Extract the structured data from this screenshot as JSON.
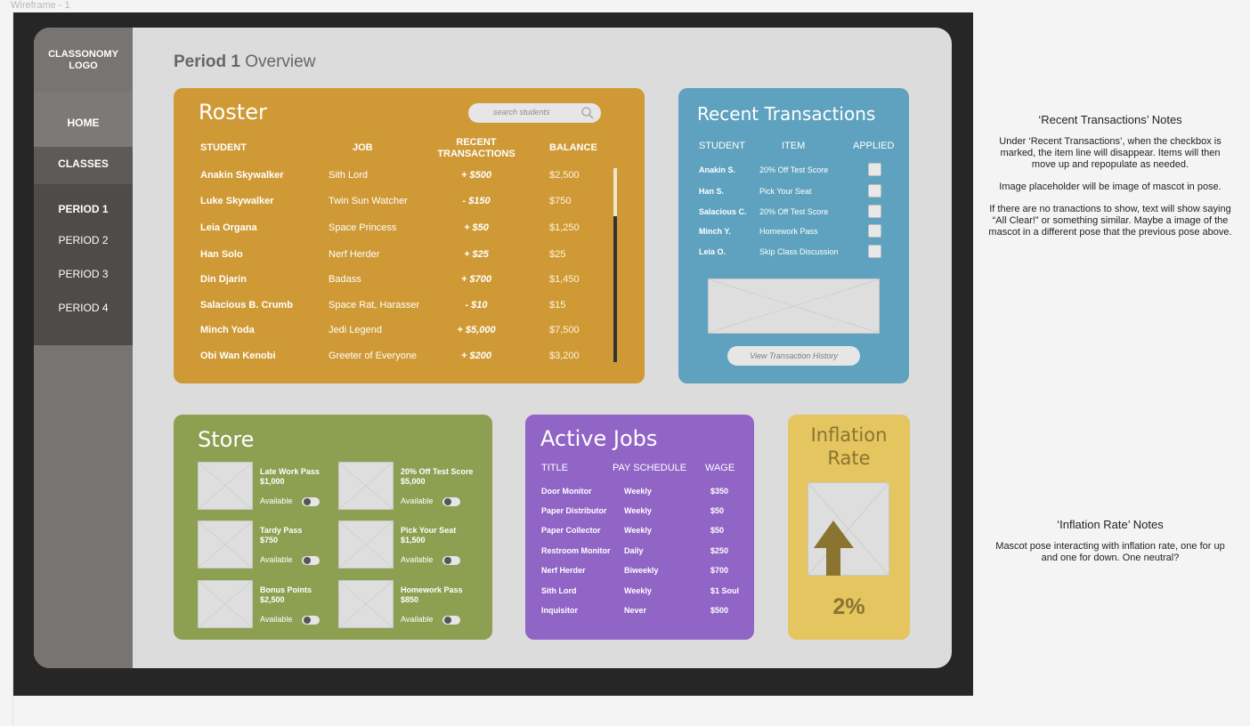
{
  "frame_label": "Wireframe - 1",
  "sidebar": {
    "logo": "CLASSONOMY LOGO",
    "home": "HOME",
    "classes": "CLASSES",
    "periods": [
      "PERIOD 1",
      "PERIOD 2",
      "PERIOD 3",
      "PERIOD 4"
    ],
    "active_period": "PERIOD 1"
  },
  "page_title": {
    "bold": "Period 1",
    "rest": " Overview"
  },
  "roster": {
    "title": "Roster",
    "search_placeholder": "search students",
    "headers": [
      "STUDENT",
      "JOB",
      "RECENT TRANSACTIONS",
      "BALANCE"
    ],
    "rows": [
      {
        "student": "Anakin Skywalker",
        "job": "Sith Lord",
        "tx": "+ $500",
        "balance": "$2,500"
      },
      {
        "student": "Luke Skywalker",
        "job": "Twin Sun Watcher",
        "tx": "- $150",
        "balance": "$750"
      },
      {
        "student": "Leia Organa",
        "job": "Space Princess",
        "tx": "+ $50",
        "balance": "$1,250"
      },
      {
        "student": "Han Solo",
        "job": "Nerf Herder",
        "tx": "+ $25",
        "balance": "$25"
      },
      {
        "student": "Din Djarin",
        "job": "Badass",
        "tx": "+ $700",
        "balance": "$1,450"
      },
      {
        "student": "Salacious B. Crumb",
        "job": "Space Rat, Harasser",
        "tx": "- $10",
        "balance": "$15"
      },
      {
        "student": "Minch Yoda",
        "job": "Jedi Legend",
        "tx": "+ $5,000",
        "balance": "$7,500"
      },
      {
        "student": "Obi Wan Kenobi",
        "job": "Greeter of Everyone",
        "tx": "+ $200",
        "balance": "$3,200"
      }
    ]
  },
  "recent": {
    "title": "Recent Transactions",
    "headers": [
      "STUDENT",
      "ITEM",
      "APPLIED"
    ],
    "rows": [
      {
        "student": "Anakin S.",
        "item": "20% Off Test Score"
      },
      {
        "student": "Han S.",
        "item": "Pick Your Seat"
      },
      {
        "student": "Salacious C.",
        "item": "20% Off Test Score"
      },
      {
        "student": "Minch Y.",
        "item": "Homework Pass"
      },
      {
        "student": "Leia O.",
        "item": "Skip Class Discussion"
      }
    ],
    "history_button": "View Transaction History"
  },
  "store": {
    "title": "Store",
    "available_label": "Available",
    "items": [
      {
        "name": "Late Work Pass",
        "price": "$1,000"
      },
      {
        "name": "20% Off Test Score",
        "price": "$5,000"
      },
      {
        "name": "Tardy Pass",
        "price": "$750"
      },
      {
        "name": "Pick Your Seat",
        "price": "$1,500"
      },
      {
        "name": "Bonus Points",
        "price": "$2,500"
      },
      {
        "name": "Homework Pass",
        "price": "$850"
      }
    ]
  },
  "jobs": {
    "title": "Active Jobs",
    "headers": [
      "TITLE",
      "PAY SCHEDULE",
      "WAGE"
    ],
    "rows": [
      {
        "title": "Door Monitor",
        "schedule": "Weekly",
        "wage": "$350"
      },
      {
        "title": "Paper Distributor",
        "schedule": "Weekly",
        "wage": "$50"
      },
      {
        "title": "Paper Collector",
        "schedule": "Weekly",
        "wage": "$50"
      },
      {
        "title": "Restroom Monitor",
        "schedule": "Daily",
        "wage": "$250"
      },
      {
        "title": "Nerf Herder",
        "schedule": "Biweekly",
        "wage": "$700"
      },
      {
        "title": "Sith Lord",
        "schedule": "Weekly",
        "wage": "$1 Soul"
      },
      {
        "title": "Inquisitor",
        "schedule": "Never",
        "wage": "$500"
      }
    ]
  },
  "inflation": {
    "title_line1": "Inflation",
    "title_line2": "Rate",
    "value": "2%"
  },
  "notes": {
    "recent": {
      "title": "‘Recent Transactions’ Notes",
      "paragraphs": [
        "Under ‘Recent Transactions’, when the checkbox is marked, the item line will disappear. Items will then move up and repopulate as needed.",
        "Image placeholder will be image of mascot in pose.",
        "If there are no tranactions to show, text will show saying “All Clear!” or something similar. Maybe a image of the mascot in a different pose that the previous pose above."
      ]
    },
    "inflation": {
      "title": "‘Inflation Rate’ Notes",
      "paragraphs": [
        "Mascot pose interacting with inflation rate, one for up and one for down. One neutral?"
      ]
    }
  },
  "colors": {
    "roster": "#cf9a36",
    "recent": "#5fa2bf",
    "store": "#8da052",
    "jobs": "#9165c6",
    "inflation": "#e4c55f",
    "sidebar": "#787472"
  }
}
